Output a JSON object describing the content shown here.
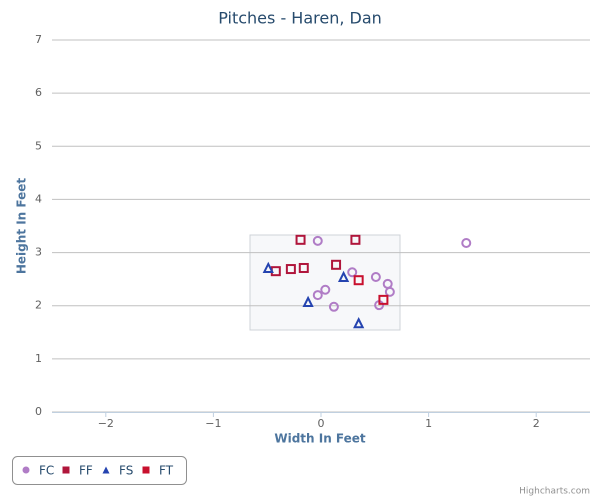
{
  "chart_data": {
    "type": "scatter",
    "title": "Pitches - Haren, Dan",
    "x_label": "Width In Feet",
    "y_label": "Height In Feet",
    "xlim": [
      -2.5,
      2.5
    ],
    "ylim": [
      0,
      7
    ],
    "xticks": [
      {
        "value": -2,
        "label": "−2"
      },
      {
        "value": -1,
        "label": "−1"
      },
      0,
      1,
      2
    ],
    "yticks": [
      0,
      1,
      2,
      3,
      4,
      5,
      6,
      7
    ],
    "grid": true,
    "legend": "bottom-left",
    "credits": "Highcharts.com",
    "series": [
      {
        "name": "FC",
        "color": "#b07cc6",
        "marker": "circle",
        "x": [
          -0.03,
          1.35,
          0.29,
          0.51,
          0.62,
          0.64,
          0.04,
          -0.03,
          0.12,
          0.54
        ],
        "values": [
          3.22,
          3.18,
          2.63,
          2.54,
          2.41,
          2.26,
          2.3,
          2.2,
          1.98,
          2.01
        ]
      },
      {
        "name": "FF",
        "color": "#b0153b",
        "marker": "square",
        "x": [
          -0.19,
          0.32,
          0.14,
          -0.16,
          -0.28,
          -0.42
        ],
        "values": [
          3.24,
          3.24,
          2.77,
          2.71,
          2.69,
          2.65
        ]
      },
      {
        "name": "FS",
        "color": "#2544b0",
        "marker": "triangle",
        "x": [
          -0.49,
          0.21,
          -0.12,
          0.35
        ],
        "values": [
          2.71,
          2.54,
          2.07,
          1.67
        ]
      },
      {
        "name": "FT",
        "color": "#c8102e",
        "marker": "square",
        "x": [
          0.35,
          0.58
        ],
        "values": [
          2.48,
          2.11
        ]
      }
    ]
  }
}
